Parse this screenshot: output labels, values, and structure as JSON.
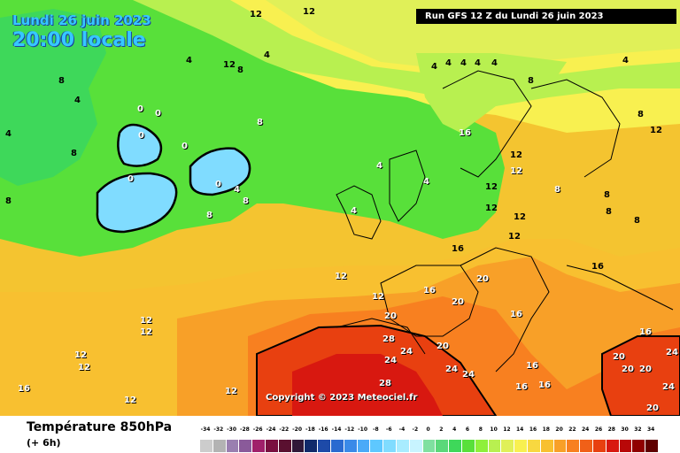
{
  "header": {
    "date": "Lundi 26 juin 2023",
    "time": "20:00 locale",
    "run": "Run GFS 12 Z du Lundi 26 juin 2023"
  },
  "copyright": "Copyright © 2023 Meteociel.fr",
  "legend": {
    "title": "Température 850hPa",
    "subtitle": "(+ 6h)",
    "ticks": [
      "-34",
      "-32",
      "-30",
      "-28",
      "-26",
      "-24",
      "-22",
      "-20",
      "-18",
      "-16",
      "-14",
      "-12",
      "-10",
      "-8",
      "-6",
      "-4",
      "-2",
      "0",
      "2",
      "4",
      "6",
      "8",
      "10",
      "12",
      "14",
      "16",
      "18",
      "20",
      "22",
      "24",
      "26",
      "28",
      "30",
      "32",
      "34"
    ],
    "colors": [
      "#cccccc",
      "#b3b3b3",
      "#9a7fb0",
      "#8a5a9a",
      "#a0206a",
      "#7a1040",
      "#5a1030",
      "#301838",
      "#102a6a",
      "#1d4aa8",
      "#2a6ad0",
      "#3a8ae8",
      "#4aaaf8",
      "#5ec8ff",
      "#80dcff",
      "#a8ecff",
      "#c8f4ff",
      "#7fe0a0",
      "#5ad87a",
      "#3ed85a",
      "#58e03a",
      "#8ef03a",
      "#b8f050",
      "#e0f058",
      "#f8f050",
      "#f8d840",
      "#f8c030",
      "#f8a028",
      "#f88020",
      "#f06018",
      "#e84010",
      "#d81810",
      "#b80808",
      "#900000",
      "#600000"
    ]
  },
  "map_labels": [
    {
      "t": "12",
      "c": "#000"
    },
    {
      "t": "12",
      "c": "#000"
    },
    {
      "t": "4",
      "c": "#000"
    },
    {
      "t": "4",
      "c": "#000"
    },
    {
      "t": "4",
      "c": "#000"
    },
    {
      "t": "8",
      "c": "#000"
    },
    {
      "t": "8",
      "c": "#000"
    },
    {
      "t": "4",
      "c": "#000"
    },
    {
      "t": "0",
      "c": "#fff"
    },
    {
      "t": "0",
      "c": "#fff"
    },
    {
      "t": "0",
      "c": "#fff"
    },
    {
      "t": "0",
      "c": "#fff"
    },
    {
      "t": "0",
      "c": "#fff"
    },
    {
      "t": "0",
      "c": "#fff"
    },
    {
      "t": "4",
      "c": "#fff"
    },
    {
      "t": "8",
      "c": "#fff"
    },
    {
      "t": "8",
      "c": "#fff"
    },
    {
      "t": "8",
      "c": "#fff"
    },
    {
      "t": "4",
      "c": "#fff"
    },
    {
      "t": "4",
      "c": "#fff"
    },
    {
      "t": "4",
      "c": "#fff"
    },
    {
      "t": "16",
      "c": "#fff"
    },
    {
      "t": "12",
      "c": "#fff"
    },
    {
      "t": "8",
      "c": "#fff"
    },
    {
      "t": "12",
      "c": "#fff"
    },
    {
      "t": "12",
      "c": "#fff"
    },
    {
      "t": "12",
      "c": "#fff"
    },
    {
      "t": "12",
      "c": "#fff"
    },
    {
      "t": "12",
      "c": "#fff"
    },
    {
      "t": "12",
      "c": "#fff"
    },
    {
      "t": "12",
      "c": "#fff"
    },
    {
      "t": "16",
      "c": "#fff"
    },
    {
      "t": "12",
      "c": "#fff"
    },
    {
      "t": "16",
      "c": "#fff"
    },
    {
      "t": "20",
      "c": "#fff"
    },
    {
      "t": "20",
      "c": "#fff"
    },
    {
      "t": "20",
      "c": "#fff"
    },
    {
      "t": "28",
      "c": "#fff"
    },
    {
      "t": "24",
      "c": "#fff"
    },
    {
      "t": "24",
      "c": "#fff"
    },
    {
      "t": "28",
      "c": "#fff"
    },
    {
      "t": "20",
      "c": "#fff"
    },
    {
      "t": "24",
      "c": "#fff"
    },
    {
      "t": "24",
      "c": "#fff"
    },
    {
      "t": "16",
      "c": "#fff"
    },
    {
      "t": "16",
      "c": "#fff"
    },
    {
      "t": "16",
      "c": "#fff"
    },
    {
      "t": "16",
      "c": "#fff"
    },
    {
      "t": "20",
      "c": "#fff"
    },
    {
      "t": "24",
      "c": "#fff"
    },
    {
      "t": "20",
      "c": "#fff"
    },
    {
      "t": "20",
      "c": "#fff"
    },
    {
      "t": "24",
      "c": "#fff"
    },
    {
      "t": "20",
      "c": "#fff"
    },
    {
      "t": "16",
      "c": "#fff"
    },
    {
      "t": "4",
      "c": "#000"
    },
    {
      "t": "4",
      "c": "#000"
    },
    {
      "t": "4",
      "c": "#000"
    },
    {
      "t": "4",
      "c": "#000"
    },
    {
      "t": "4",
      "c": "#000"
    },
    {
      "t": "4",
      "c": "#000"
    },
    {
      "t": "8",
      "c": "#000"
    },
    {
      "t": "8",
      "c": "#000"
    },
    {
      "t": "8",
      "c": "#000"
    },
    {
      "t": "12",
      "c": "#000"
    },
    {
      "t": "12",
      "c": "#000"
    },
    {
      "t": "16",
      "c": "#000"
    },
    {
      "t": "12",
      "c": "#000"
    },
    {
      "t": "12",
      "c": "#000"
    },
    {
      "t": "12",
      "c": "#000"
    },
    {
      "t": "12",
      "c": "#000"
    },
    {
      "t": "16",
      "c": "#000"
    },
    {
      "t": "8",
      "c": "#000"
    },
    {
      "t": "8",
      "c": "#000"
    },
    {
      "t": "8",
      "c": "#000"
    },
    {
      "t": "12",
      "c": "#000"
    },
    {
      "t": "8",
      "c": "#000"
    }
  ]
}
